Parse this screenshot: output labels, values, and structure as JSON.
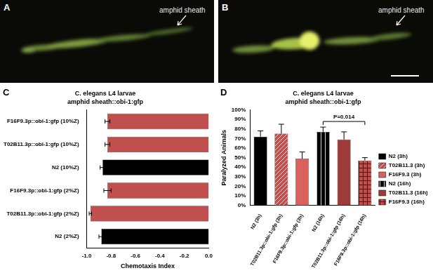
{
  "images": [
    {
      "label": "A",
      "annotation": "amphid sheath"
    },
    {
      "label": "B",
      "annotation": "amphid sheath"
    }
  ],
  "chart_data": [
    {
      "label": "C",
      "type": "bar",
      "orientation": "horizontal",
      "title": "C. elegans L4 larvae",
      "subtitle": "amphid sheath::obi-1:gfp",
      "categories": [
        "F16F9.3p::obi-1:gfp (10%Z)",
        "T02B11.3p::obi-1:gfp (10%Z)",
        "N2 (10%Z)",
        "F16F9.3p::obi-1:gfp (2%Z)",
        "T02B11.3p::obi-1:gfp (2%Z)",
        "N2 (2%Z)"
      ],
      "values": [
        -0.83,
        -0.83,
        -0.87,
        -0.83,
        -0.97,
        -0.88
      ],
      "errors": [
        0.02,
        0.02,
        0.02,
        0.03,
        0.01,
        0.02
      ],
      "colors": [
        "#c0504d",
        "#c0504d",
        "#000000",
        "#c0504d",
        "#c0504d",
        "#000000"
      ],
      "x_label": "Chemotaxis Index",
      "xlim": [
        -1,
        0
      ],
      "xticks": [
        {
          "value": -1,
          "label": "-1.0"
        },
        -0.8,
        -0.6,
        -0.4,
        -0.2,
        {
          "value": 0,
          "label": "0.0"
        }
      ],
      "grid": false
    },
    {
      "label": "D",
      "type": "bar",
      "title": "C. elegans L4 larvae",
      "subtitle": "amphid sheath::obi-1:gfp",
      "categories": [
        "N2 (3h)",
        "T02B11.3p::obi-1:gfp (3h)",
        "F16F9.3p::obi-1:gfp (3h)",
        "N2 (16h)",
        "T02B11.3p::obi-1:gfp (16h)",
        "F16F9.3p::obi-1:gfp (16h)"
      ],
      "series": [
        {
          "name": "N2 (3h)",
          "color": "#000000",
          "marker": "solid",
          "values": [
            72,
            null,
            null,
            null,
            null,
            null
          ],
          "errors": [
            6,
            null,
            null,
            null,
            null,
            null
          ]
        },
        {
          "name": "T02B11.3 (3h)",
          "color": "#c0504d",
          "marker": "diagonal",
          "values": [
            null,
            75,
            null,
            null,
            null,
            null
          ],
          "errors": [
            null,
            10,
            null,
            null,
            null,
            null
          ]
        },
        {
          "name": "F16F9.3 (3h)",
          "color": "#d9625f",
          "marker": "solid",
          "values": [
            null,
            null,
            49,
            null,
            null,
            null
          ],
          "errors": [
            null,
            null,
            7,
            null,
            null,
            null
          ]
        },
        {
          "name": "N2 (16h)",
          "color": "#000000",
          "marker": "vertical",
          "values": [
            null,
            null,
            null,
            77,
            null,
            null
          ],
          "errors": [
            null,
            null,
            null,
            5,
            null,
            null
          ]
        },
        {
          "name": "T02B11.3 (16h)",
          "color": "#9e3b38",
          "marker": "solid",
          "values": [
            null,
            null,
            null,
            null,
            69,
            null
          ],
          "errors": [
            null,
            null,
            null,
            null,
            8,
            null
          ]
        },
        {
          "name": "F16F9.3 (16h)",
          "color": "#c0504d",
          "marker": "check",
          "values": [
            null,
            null,
            null,
            null,
            null,
            47
          ],
          "errors": [
            null,
            null,
            null,
            null,
            null,
            3
          ]
        }
      ],
      "y_label": "Paralyzed Animals",
      "ylim": [
        0,
        100
      ],
      "yticks": [
        {
          "value": 0,
          "label": "0%"
        },
        {
          "value": 10,
          "label": "10%"
        },
        {
          "value": 20,
          "label": "20%"
        },
        {
          "value": 30,
          "label": "30%"
        },
        {
          "value": 40,
          "label": "40%"
        },
        {
          "value": 50,
          "label": "50%"
        },
        {
          "value": 60,
          "label": "60%"
        },
        {
          "value": 70,
          "label": "70%"
        },
        {
          "value": 80,
          "label": "80%"
        },
        {
          "value": 90,
          "label": "90%"
        },
        {
          "value": 100,
          "label": "100%"
        }
      ],
      "legend": "right",
      "grid": false,
      "annotations": [
        {
          "text": "P=0.014",
          "from": "N2 (16h)",
          "to": "F16F9.3p::obi-1:gfp (16h)"
        }
      ]
    }
  ]
}
